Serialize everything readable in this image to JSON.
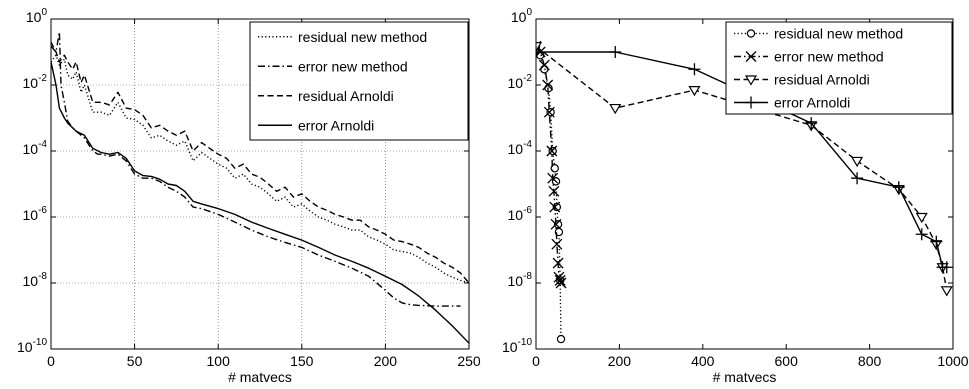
{
  "chart_data": [
    {
      "type": "line",
      "xlabel": "# matvecs",
      "ylabel": "",
      "xlim": [
        0,
        250
      ],
      "ylim": [
        1e-10,
        1
      ],
      "y_scale": "log",
      "grid": true,
      "legend_position": "top-right",
      "x_ticks": [
        "0",
        "50",
        "100",
        "150",
        "200",
        "250"
      ],
      "y_ticks": [
        {
          "base": "10",
          "exp": "-10",
          "value": 1e-10
        },
        {
          "base": "10",
          "exp": "-8",
          "value": 1e-08
        },
        {
          "base": "10",
          "exp": "-6",
          "value": 1e-06
        },
        {
          "base": "10",
          "exp": "-4",
          "value": 0.0001
        },
        {
          "base": "10",
          "exp": "-2",
          "value": 0.01
        },
        {
          "base": "10",
          "exp": "0",
          "value": 1
        }
      ],
      "series": [
        {
          "name": "residual new method",
          "style": "dotted",
          "color": "#000000",
          "x": [
            0,
            3,
            5,
            8,
            10,
            13,
            15,
            18,
            20,
            25,
            30,
            35,
            40,
            45,
            50,
            55,
            60,
            65,
            70,
            75,
            80,
            85,
            90,
            95,
            100,
            105,
            110,
            115,
            120,
            125,
            130,
            135,
            140,
            145,
            150,
            155,
            160,
            165,
            170,
            175,
            180,
            185,
            190,
            195,
            200,
            205,
            210,
            215,
            220,
            225,
            230,
            235,
            240,
            245,
            250
          ],
          "y": [
            0.05,
            0.08,
            0.04,
            0.06,
            0.02,
            0.015,
            0.025,
            0.006,
            0.01,
            0.0015,
            0.0015,
            0.0012,
            0.003,
            0.001,
            0.0009,
            0.0006,
            0.00025,
            0.0003,
            0.0002,
            0.00015,
            0.0002,
            5e-05,
            9e-05,
            6e-05,
            4e-05,
            3e-05,
            1.5e-05,
            2e-05,
            1e-05,
            8e-06,
            5e-06,
            3e-06,
            4e-06,
            2e-06,
            2.5e-06,
            1.5e-06,
            1e-06,
            8e-07,
            6e-07,
            5e-07,
            4e-07,
            4e-07,
            2.5e-07,
            2e-07,
            1.5e-07,
            1e-07,
            9e-08,
            8e-08,
            6e-08,
            4e-08,
            3e-08,
            2e-08,
            1.5e-08,
            1.2e-08,
            1e-08
          ]
        },
        {
          "name": "error new method",
          "style": "dashdot",
          "color": "#000000",
          "x": [
            0,
            3,
            5,
            6,
            8,
            10,
            13,
            15,
            20,
            25,
            28,
            30,
            35,
            40,
            45,
            50,
            55,
            60,
            65,
            70,
            75,
            80,
            85,
            90,
            100,
            110,
            120,
            130,
            140,
            150,
            160,
            170,
            180,
            190,
            200,
            205,
            210,
            215,
            220,
            230,
            240,
            245
          ],
          "y": [
            0.15,
            0.1,
            0.4,
            0.01,
            0.003,
            0.0008,
            0.0005,
            0.0004,
            0.00025,
            0.0001,
            8e-05,
            8e-05,
            7e-05,
            8e-05,
            5e-05,
            2e-05,
            1.5e-05,
            1.5e-05,
            1.2e-05,
            8e-06,
            6e-06,
            4e-06,
            2e-06,
            1.8e-06,
            1.2e-06,
            7e-07,
            4e-07,
            2.5e-07,
            1.7e-07,
            1.2e-07,
            7e-08,
            4.5e-08,
            2.8e-08,
            1.6e-08,
            6e-09,
            3.5e-09,
            2.5e-09,
            2.2e-09,
            2.1e-09,
            2e-09,
            2e-09,
            2e-09
          ]
        },
        {
          "name": "residual Arnoldi",
          "style": "dashed",
          "color": "#000000",
          "x": [
            0,
            3,
            5,
            8,
            10,
            13,
            15,
            18,
            20,
            25,
            30,
            35,
            40,
            45,
            50,
            55,
            60,
            65,
            70,
            75,
            80,
            85,
            90,
            95,
            100,
            105,
            110,
            115,
            120,
            125,
            130,
            135,
            140,
            145,
            150,
            155,
            160,
            165,
            170,
            175,
            180,
            185,
            190,
            195,
            200,
            205,
            210,
            215,
            220,
            225,
            230,
            235,
            240,
            245,
            250
          ],
          "y": [
            0.2,
            0.1,
            0.05,
            0.08,
            0.05,
            0.03,
            0.05,
            0.012,
            0.02,
            0.003,
            0.003,
            0.0025,
            0.006,
            0.002,
            0.0018,
            0.0012,
            0.0005,
            0.0006,
            0.0004,
            0.0003,
            0.0004,
            0.0001,
            0.00018,
            0.00012,
            8e-05,
            6e-05,
            3e-05,
            4e-05,
            2e-05,
            1.6e-05,
            1e-05,
            6e-06,
            8e-06,
            4e-06,
            5e-06,
            3e-06,
            2e-06,
            1.6e-06,
            1.2e-06,
            1e-06,
            8e-07,
            8e-07,
            5e-07,
            4e-07,
            3e-07,
            2e-07,
            1.8e-07,
            1.5e-07,
            1.2e-07,
            8e-08,
            6e-08,
            4e-08,
            3e-08,
            2e-08,
            1e-08
          ]
        },
        {
          "name": "error Arnoldi",
          "style": "solid",
          "color": "#000000",
          "x": [
            0,
            3,
            5,
            8,
            10,
            13,
            15,
            20,
            25,
            30,
            35,
            40,
            45,
            50,
            55,
            60,
            65,
            70,
            75,
            80,
            85,
            90,
            100,
            110,
            120,
            130,
            140,
            150,
            160,
            170,
            180,
            190,
            200,
            210,
            220,
            230,
            240,
            250
          ],
          "y": [
            0.05,
            0.01,
            0.002,
            0.001,
            0.0007,
            0.0005,
            0.0004,
            0.0003,
            0.00012,
            9e-05,
            8e-05,
            9e-05,
            6e-05,
            2.5e-05,
            1.8e-05,
            1.7e-05,
            1.4e-05,
            1e-05,
            9e-06,
            6e-06,
            3e-06,
            2.5e-06,
            1.8e-06,
            1.2e-06,
            7e-07,
            4.5e-07,
            3e-07,
            2e-07,
            1.2e-07,
            7e-08,
            4.5e-08,
            2.8e-08,
            1.6e-08,
            9e-09,
            4e-09,
            1.5e-09,
            5e-10,
            1.5e-10
          ]
        }
      ]
    },
    {
      "type": "line",
      "xlabel": "# matvecs",
      "ylabel": "",
      "xlim": [
        0,
        1000
      ],
      "ylim": [
        1e-10,
        1
      ],
      "y_scale": "log",
      "grid": false,
      "legend_position": "top-right",
      "x_ticks": [
        "0",
        "200",
        "400",
        "600",
        "800",
        "1000"
      ],
      "y_ticks": [
        {
          "base": "10",
          "exp": "-10",
          "value": 1e-10
        },
        {
          "base": "10",
          "exp": "-8",
          "value": 1e-08
        },
        {
          "base": "10",
          "exp": "-6",
          "value": 1e-06
        },
        {
          "base": "10",
          "exp": "-4",
          "value": 0.0001
        },
        {
          "base": "10",
          "exp": "-2",
          "value": 0.01
        },
        {
          "base": "10",
          "exp": "0",
          "value": 1
        }
      ],
      "series": [
        {
          "name": "residual new method",
          "style": "dotted",
          "marker": "circle",
          "color": "#000000",
          "x": [
            0,
            10,
            20,
            30,
            35,
            40,
            45,
            48,
            50,
            53,
            55,
            58,
            60
          ],
          "y": [
            0.15,
            0.08,
            0.03,
            0.008,
            0.0015,
            0.0001,
            3e-05,
            1.2e-05,
            2e-06,
            6e-07,
            3.5e-07,
            1.2e-08,
            2e-10
          ]
        },
        {
          "name": "error new method",
          "style": "dashdot",
          "marker": "x",
          "color": "#000000",
          "x": [
            0,
            10,
            20,
            28,
            32,
            38,
            40,
            43,
            45,
            48,
            50,
            53,
            55,
            58,
            60
          ],
          "y": [
            0.15,
            0.1,
            0.04,
            0.01,
            0.0015,
            0.0001,
            1.5e-05,
            6e-06,
            2e-06,
            6e-07,
            1.5e-07,
            4e-08,
            1.5e-08,
            1.2e-08,
            1e-08
          ]
        },
        {
          "name": "residual Arnoldi",
          "style": "dashed",
          "marker": "triangle-down",
          "color": "#000000",
          "x": [
            0,
            190,
            380,
            660,
            770,
            870,
            925,
            960,
            975,
            985
          ],
          "y": [
            0.15,
            0.002,
            0.007,
            0.0006,
            5e-05,
            7e-06,
            1e-06,
            1.5e-07,
            3e-08,
            6e-09
          ]
        },
        {
          "name": "error Arnoldi",
          "style": "solid",
          "marker": "plus",
          "color": "#000000",
          "x": [
            0,
            190,
            380,
            660,
            770,
            870,
            925,
            960,
            975,
            985
          ],
          "y": [
            0.1,
            0.1,
            0.03,
            0.0007,
            1.5e-05,
            8e-06,
            3e-07,
            1.8e-07,
            3e-08,
            3e-08
          ]
        }
      ]
    }
  ]
}
